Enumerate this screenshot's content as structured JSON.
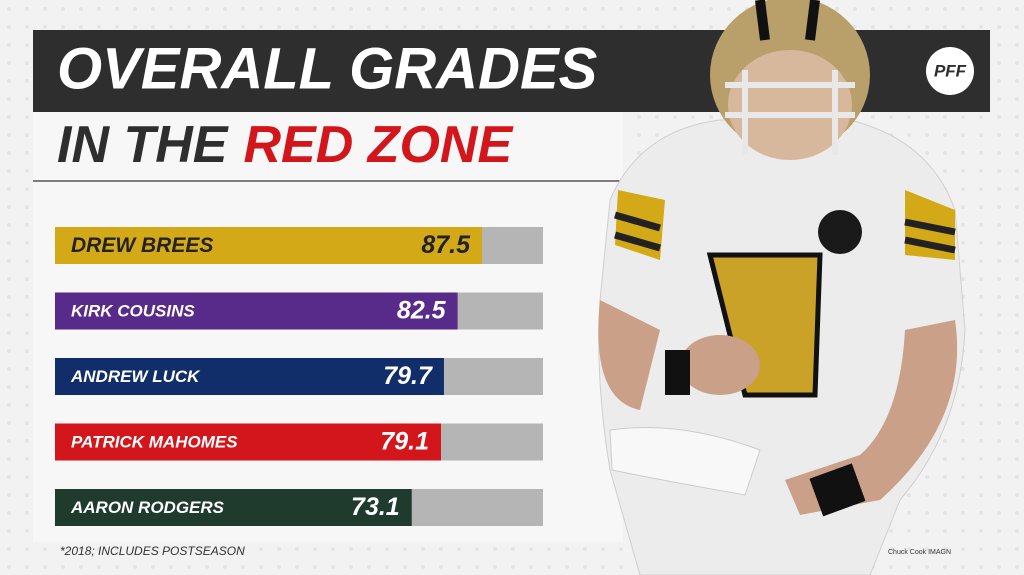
{
  "chart_data": {
    "type": "bar",
    "orientation": "horizontal",
    "title": "OVERALL GRADES",
    "subtitle": [
      "IN THE",
      "RED ZONE"
    ],
    "categories": [
      "DREW BREES",
      "KIRK COUSINS",
      "ANDREW LUCK",
      "PATRICK MAHOMES",
      "AARON RODGERS"
    ],
    "values": [
      87.5,
      82.5,
      79.7,
      79.1,
      73.1
    ],
    "colors": [
      "#d3a917",
      "#582a8a",
      "#112d6a",
      "#d2161b",
      "#1f3b2d"
    ],
    "label_colors": [
      "#222222",
      "#ffffff",
      "#ffffff",
      "#ffffff",
      "#ffffff"
    ],
    "track_color": "#b5b5b5",
    "xlim": [
      0,
      100
    ],
    "footnote": "*2018; INCLUDES POSTSEASON",
    "credit": "Chuck Cook IMAGN",
    "logo": "PFF"
  }
}
